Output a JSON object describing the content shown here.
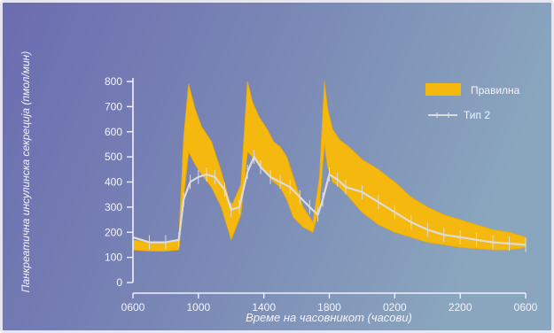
{
  "chart_data": {
    "type": "area",
    "xlabel": "Време на часовникот (часови)",
    "ylabel": "Панкреатична инсулинска секреција (пмол/мин)",
    "xlim": [
      0,
      24
    ],
    "ylim": [
      0,
      800
    ],
    "x_ticks": [
      0,
      4,
      8,
      12,
      16,
      20,
      24
    ],
    "x_tick_labels": [
      "0600",
      "1000",
      "1400",
      "1800",
      "0200",
      "2200",
      "0600"
    ],
    "y_ticks": [
      0,
      100,
      200,
      300,
      400,
      500,
      600,
      700,
      800
    ],
    "y_tick_labels": [
      "0",
      "100",
      "200",
      "300",
      "400",
      "500",
      "600",
      "700",
      "800"
    ],
    "legend_position": "top-right",
    "colors": {
      "background_left": "#6c6cb0",
      "background_right": "#8aa6be",
      "band_fill": "#f5b80e",
      "series2_line": "#dcdcdc",
      "axis": "#f0f0ff"
    },
    "series": [
      {
        "name": "Правилна",
        "kind": "band",
        "x": [
          0,
          1,
          2,
          2.8,
          3.1,
          3.4,
          3.8,
          4.2,
          4.8,
          5.4,
          6.0,
          6.6,
          7.0,
          7.3,
          7.7,
          8.2,
          8.6,
          9.0,
          9.4,
          9.8,
          10.4,
          11.0,
          11.4,
          11.7,
          11.9,
          12.2,
          12.6,
          13.2,
          14.0,
          15.0,
          16.0,
          17.0,
          18.0,
          19.0,
          20.0,
          21.0,
          22.0,
          23.0,
          24.0
        ],
        "upper": [
          170,
          160,
          160,
          170,
          580,
          790,
          690,
          620,
          560,
          440,
          300,
          390,
          800,
          720,
          660,
          610,
          560,
          540,
          500,
          420,
          300,
          240,
          420,
          800,
          690,
          610,
          570,
          540,
          490,
          450,
          400,
          340,
          300,
          270,
          250,
          230,
          210,
          200,
          180
        ],
        "lower": [
          130,
          125,
          125,
          130,
          340,
          520,
          470,
          430,
          380,
          300,
          170,
          270,
          520,
          500,
          470,
          430,
          400,
          380,
          330,
          260,
          220,
          200,
          300,
          550,
          460,
          400,
          380,
          340,
          280,
          230,
          200,
          180,
          160,
          150,
          140,
          135,
          130,
          130,
          140
        ]
      },
      {
        "name": "Тип 2",
        "kind": "line",
        "x": [
          0,
          1,
          2,
          2.8,
          3.1,
          3.5,
          4.0,
          4.5,
          5.0,
          5.6,
          6.0,
          6.5,
          7.0,
          7.4,
          7.8,
          8.4,
          9.0,
          9.6,
          10.2,
          10.8,
          11.3,
          11.6,
          12.0,
          12.5,
          13.0,
          14.0,
          15.0,
          16.0,
          17.0,
          18.0,
          19.0,
          20.0,
          21.0,
          22.0,
          23.0,
          24.0
        ],
        "values": [
          180,
          160,
          160,
          170,
          330,
          400,
          420,
          430,
          420,
          370,
          290,
          300,
          440,
          500,
          460,
          420,
          400,
          380,
          340,
          300,
          270,
          330,
          430,
          410,
          380,
          360,
          320,
          280,
          240,
          210,
          190,
          180,
          170,
          160,
          155,
          150
        ]
      }
    ]
  }
}
